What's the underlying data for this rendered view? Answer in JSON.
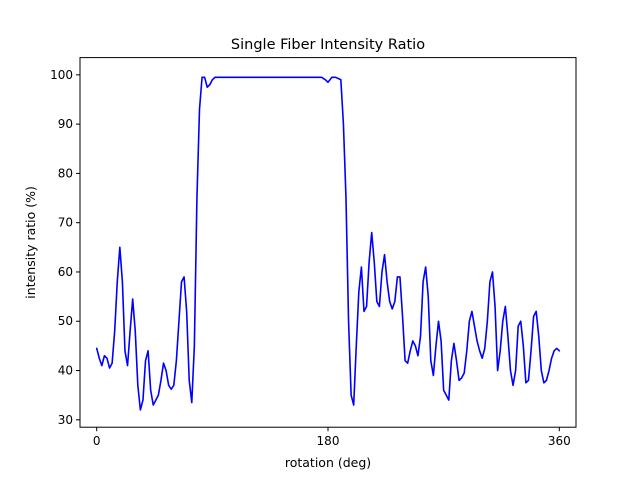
{
  "chart_data": {
    "type": "line",
    "title": "Single Fiber Intensity Ratio",
    "xlabel": "rotation (deg)",
    "ylabel": "intensity ratio (%)",
    "xlim": [
      -13,
      373
    ],
    "ylim": [
      28.5,
      103.5
    ],
    "xticks": [
      0,
      180,
      360
    ],
    "xtick_labels": [
      "0",
      "180",
      "360"
    ],
    "yticks": [
      30,
      40,
      50,
      60,
      70,
      80,
      90,
      100
    ],
    "ytick_labels": [
      "30",
      "40",
      "50",
      "60",
      "70",
      "80",
      "90",
      "100"
    ],
    "grid": false,
    "legend": "none",
    "series": [
      {
        "color": "#0000ff",
        "x": [
          0,
          2,
          4,
          6,
          8,
          10,
          12,
          14,
          16,
          18,
          20,
          22,
          24,
          26,
          28,
          30,
          32,
          34,
          36,
          38,
          40,
          42,
          44,
          46,
          48,
          50,
          52,
          54,
          56,
          58,
          60,
          62,
          64,
          66,
          68,
          70,
          72,
          74,
          76,
          78,
          80,
          82,
          84,
          86,
          88,
          90,
          92,
          95,
          100,
          120,
          140,
          160,
          175,
          178,
          180,
          183,
          186,
          190,
          192,
          194,
          196,
          198,
          200,
          202,
          204,
          206,
          208,
          210,
          212,
          214,
          216,
          218,
          220,
          222,
          224,
          226,
          228,
          230,
          232,
          234,
          236,
          238,
          240,
          242,
          244,
          246,
          248,
          250,
          252,
          254,
          256,
          258,
          260,
          262,
          264,
          266,
          268,
          270,
          272,
          274,
          276,
          278,
          280,
          282,
          284,
          286,
          288,
          290,
          292,
          294,
          296,
          298,
          300,
          302,
          304,
          306,
          308,
          310,
          312,
          314,
          316,
          318,
          320,
          322,
          324,
          326,
          328,
          330,
          332,
          334,
          336,
          338,
          340,
          342,
          344,
          346,
          348,
          350,
          352,
          354,
          356,
          358,
          360
        ],
        "y": [
          44.5,
          42.5,
          41,
          43,
          42.5,
          40.5,
          41.5,
          48,
          58,
          65,
          58,
          44,
          41,
          48,
          54.5,
          48,
          37,
          32,
          34,
          42,
          44,
          36,
          33,
          34,
          35,
          38,
          41.5,
          40,
          37,
          36.2,
          37,
          42,
          50,
          58,
          59,
          52,
          38,
          33.5,
          45,
          75,
          93,
          99.5,
          99.5,
          97.5,
          98,
          99,
          99.5,
          99.5,
          99.5,
          99.5,
          99.5,
          99.5,
          99.5,
          99,
          98.5,
          99.5,
          99.5,
          99,
          90,
          75,
          50,
          35,
          33,
          45,
          56,
          61,
          52,
          53,
          62,
          68,
          62,
          54,
          53,
          60,
          63.5,
          58,
          54,
          52.5,
          54,
          59,
          59,
          51,
          42,
          41.5,
          44,
          46,
          45,
          43,
          47,
          58,
          61,
          55,
          42,
          39,
          45,
          50,
          46,
          36,
          35,
          34,
          42,
          45.5,
          42,
          38,
          38.5,
          39.5,
          44,
          50,
          52,
          49,
          46,
          44,
          42.5,
          44.5,
          50,
          58,
          60,
          53,
          40,
          44,
          50,
          53,
          47,
          40,
          37,
          40,
          49,
          50,
          45,
          37.5,
          38,
          44,
          51,
          52,
          47,
          40,
          37.5,
          38,
          40,
          42.5,
          44,
          44.5,
          44
        ]
      }
    ]
  }
}
